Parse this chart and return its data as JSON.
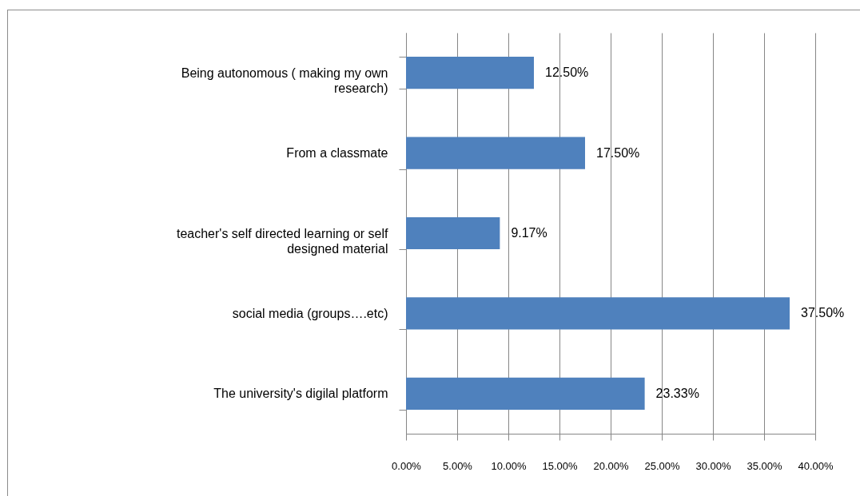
{
  "chart_data": {
    "type": "bar",
    "orientation": "horizontal",
    "categories": [
      "Being autonomous ( making my own research)",
      "From a classmate",
      "teacher's self directed learning or self designed material",
      "social media (groups….etc)",
      "The university's digilal platform"
    ],
    "values": [
      12.5,
      17.5,
      9.17,
      37.5,
      23.33
    ],
    "color": "#4f81bd",
    "value_labels": [
      "12.50%",
      "17.50%",
      "9.17%",
      "37.50%",
      "23.33%"
    ],
    "xlim": [
      0,
      40
    ],
    "xticks": [
      {
        "value": 0,
        "label": "0.00%"
      },
      {
        "value": 5,
        "label": "5.00%"
      },
      {
        "value": 10,
        "label": "10.00%"
      },
      {
        "value": 15,
        "label": "15.00%"
      },
      {
        "value": 20,
        "label": "20.00%"
      },
      {
        "value": 25,
        "label": "25.00%"
      },
      {
        "value": 30,
        "label": "30.00%"
      },
      {
        "value": 35,
        "label": "35.00%"
      },
      {
        "value": 40,
        "label": "40.00%"
      }
    ],
    "grid": "x"
  }
}
